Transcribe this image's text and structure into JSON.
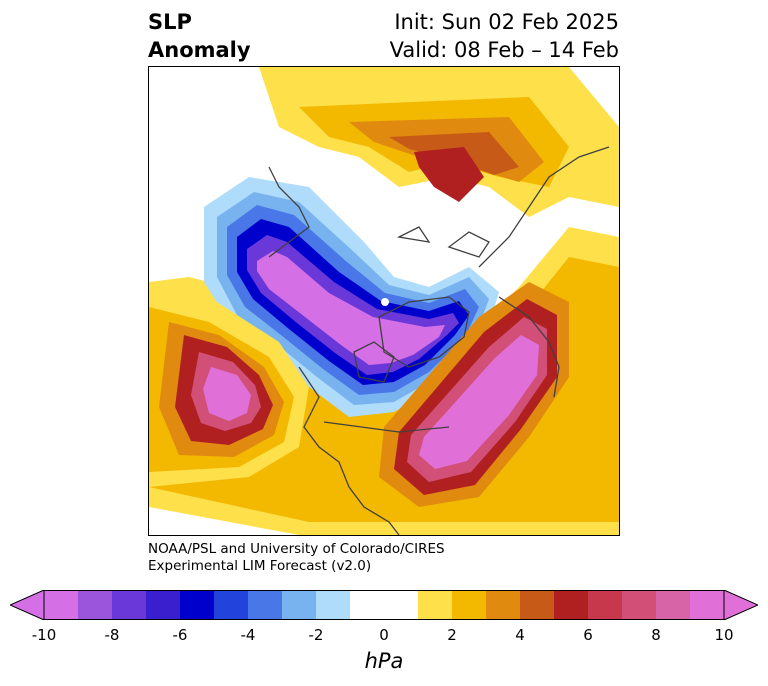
{
  "title": {
    "left_line1": "SLP",
    "left_line2": "Anomaly",
    "right_line1": "Init: Sun 02 Feb 2025",
    "right_line2": "Valid: 08 Feb – 14 Feb"
  },
  "credits": {
    "line1": "NOAA/PSL and University of Colorado/CIRES",
    "line2": "Experimental LIM Forecast (v2.0)"
  },
  "colorbar": {
    "unit": "hPa",
    "ticks": [
      "-10",
      "-8",
      "-6",
      "-4",
      "-2",
      "0",
      "2",
      "4",
      "6",
      "8",
      "10"
    ],
    "colors": [
      "#d56fe6",
      "#9a55dc",
      "#6a38d8",
      "#3a1fcf",
      "#0000cc",
      "#2244dd",
      "#4a77e8",
      "#78b3f0",
      "#aedcfa",
      "#ffffff",
      "#ffffff",
      "#fde04a",
      "#f3b800",
      "#e08a10",
      "#c85a18",
      "#b02020",
      "#c8384c",
      "#d25078",
      "#d864a8",
      "#e070d8"
    ],
    "under_color": "#d56fe6",
    "over_color": "#e070d8"
  },
  "map_colors": {
    "land_outline": "#404040",
    "neg_1": "#aedcfa",
    "neg_2": "#78b3f0",
    "neg_3": "#4a77e8",
    "neg_4": "#2244dd",
    "neg_5": "#0000cc",
    "neg_6": "#3a1fcf",
    "neg_7": "#6a38d8",
    "neg_8": "#9a55dc",
    "neg_9": "#d56fe6",
    "pos_1": "#fde04a",
    "pos_2": "#f3b800",
    "pos_3": "#e08a10",
    "pos_4": "#c85a18",
    "pos_5": "#b02020",
    "pos_6": "#c8384c",
    "pos_7": "#d25078",
    "pos_8": "#d864a8",
    "pos_9": "#e070d8"
  }
}
